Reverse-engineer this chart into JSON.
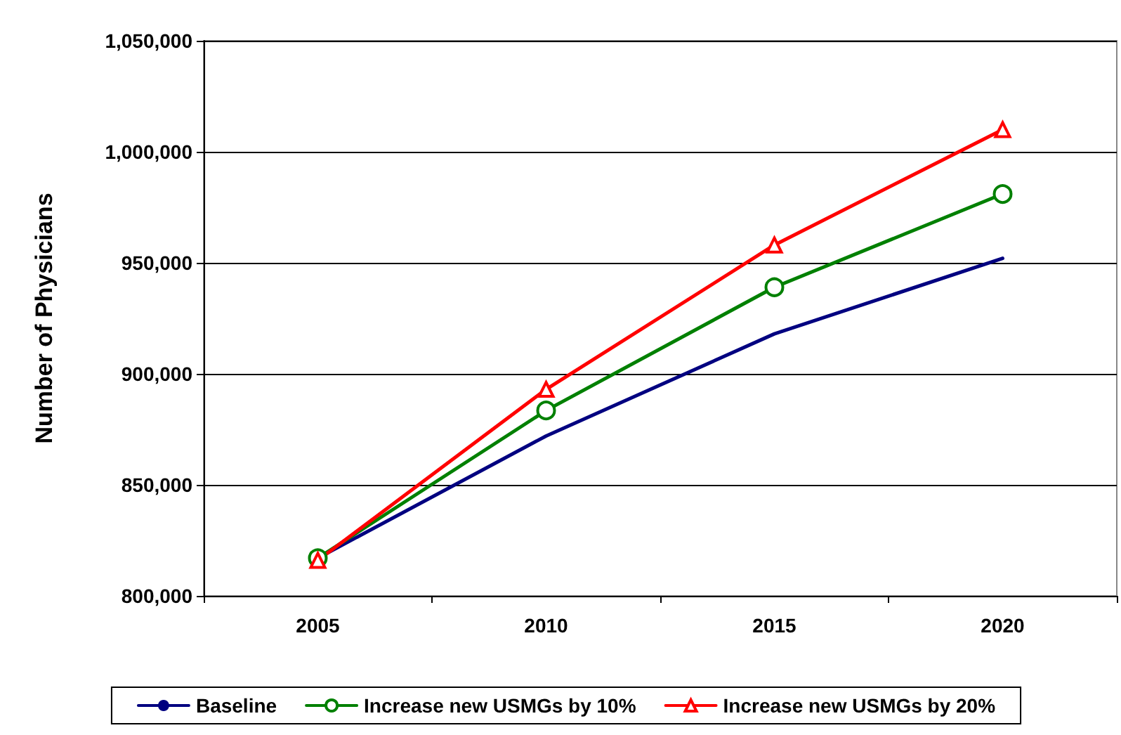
{
  "chart_data": {
    "type": "line",
    "ylabel": "Number of Physicians",
    "categories": [
      "2005",
      "2010",
      "2015",
      "2020"
    ],
    "series": [
      {
        "name": "Baseline",
        "color": "#000080",
        "marker": "none",
        "values": [
          817000,
          872000,
          918000,
          952000
        ]
      },
      {
        "name": "Increase new USMGs by 10%",
        "color": "#008000",
        "marker": "circle",
        "values": [
          817000,
          883500,
          939000,
          981000
        ]
      },
      {
        "name": "Increase new USMGs by 20%",
        "color": "#ff0000",
        "marker": "triangle",
        "values": [
          816000,
          893000,
          958000,
          1010000
        ]
      }
    ],
    "ylim": [
      800000,
      1050000
    ],
    "yticks": [
      {
        "value": 800000,
        "label": "800,000"
      },
      {
        "value": 850000,
        "label": "850,000"
      },
      {
        "value": 900000,
        "label": "900,000"
      },
      {
        "value": 950000,
        "label": "950,000"
      },
      {
        "value": 1000000,
        "label": "1,000,000"
      },
      {
        "value": 1050000,
        "label": "1,050,000"
      }
    ],
    "grid": "y",
    "legend": "bottom",
    "line_style": "solid"
  }
}
